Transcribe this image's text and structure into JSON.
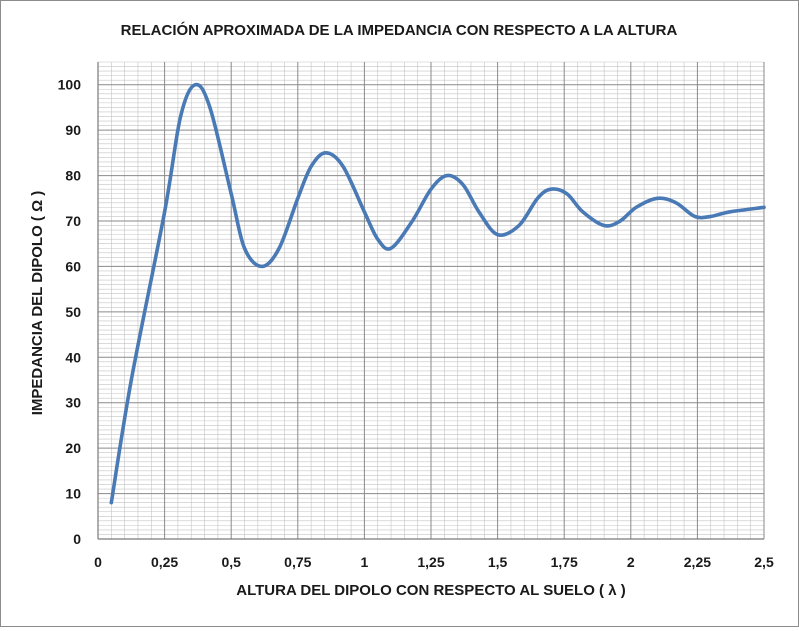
{
  "chart_data": {
    "type": "line",
    "title": "RELACIÓN APROXIMADA DE LA IMPEDANCIA CON RESPECTO A LA ALTURA",
    "xlabel": "ALTURA DEL DIPOLO CON RESPECTO AL SUELO ( λ )",
    "ylabel": "IMPEDANCIA DEL DIPOLO ( Ω )",
    "xlim": [
      0,
      2.5
    ],
    "ylim": [
      0,
      105
    ],
    "x_ticks": [
      "0",
      "0,25",
      "0,5",
      "0,75",
      "1",
      "1,25",
      "1,5",
      "1,75",
      "2",
      "2,25",
      "2,5"
    ],
    "y_ticks": [
      "0",
      "10",
      "20",
      "30",
      "40",
      "50",
      "60",
      "70",
      "80",
      "90",
      "100"
    ],
    "grid": true,
    "legend": "none",
    "line_color": "#4a7ab5",
    "series": [
      {
        "x": [
          0.05,
          0.125,
          0.25,
          0.31,
          0.365,
          0.42,
          0.5,
          0.55,
          0.615,
          0.68,
          0.75,
          0.8,
          0.855,
          0.92,
          1.0,
          1.05,
          1.1,
          1.18,
          1.25,
          1.31,
          1.37,
          1.43,
          1.5,
          1.58,
          1.65,
          1.7,
          1.76,
          1.82,
          1.9,
          1.96,
          2.02,
          2.1,
          2.17,
          2.24,
          2.3,
          2.37,
          2.5
        ],
        "y": [
          8,
          35,
          72,
          93,
          100,
          95,
          76,
          64,
          60,
          64,
          75,
          82,
          85,
          82,
          72,
          66,
          64,
          70,
          77,
          80,
          78,
          72,
          67,
          69,
          75,
          77,
          76,
          72,
          69,
          70,
          73,
          75,
          74,
          71,
          71,
          72,
          73
        ]
      }
    ]
  }
}
